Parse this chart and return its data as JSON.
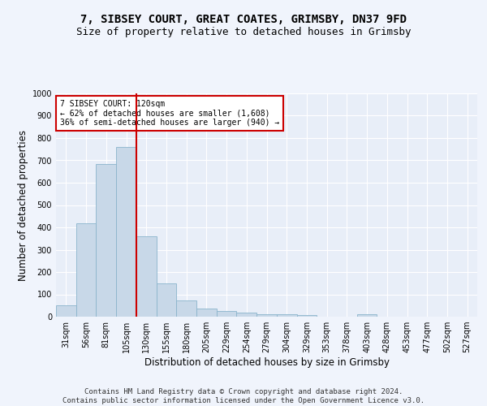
{
  "title_line1": "7, SIBSEY COURT, GREAT COATES, GRIMSBY, DN37 9FD",
  "title_line2": "Size of property relative to detached houses in Grimsby",
  "xlabel": "Distribution of detached houses by size in Grimsby",
  "ylabel": "Number of detached properties",
  "footer_line1": "Contains HM Land Registry data © Crown copyright and database right 2024.",
  "footer_line2": "Contains public sector information licensed under the Open Government Licence v3.0.",
  "categories": [
    "31sqm",
    "56sqm",
    "81sqm",
    "105sqm",
    "130sqm",
    "155sqm",
    "180sqm",
    "205sqm",
    "229sqm",
    "254sqm",
    "279sqm",
    "304sqm",
    "329sqm",
    "353sqm",
    "378sqm",
    "403sqm",
    "428sqm",
    "453sqm",
    "477sqm",
    "502sqm",
    "527sqm"
  ],
  "values": [
    50,
    420,
    685,
    760,
    360,
    150,
    72,
    38,
    25,
    17,
    12,
    10,
    8,
    0,
    0,
    10,
    0,
    0,
    0,
    0,
    0
  ],
  "bar_color": "#c8d8e8",
  "bar_edge_color": "#8ab4cc",
  "red_line_x": 3.5,
  "annotation_text": "7 SIBSEY COURT: 120sqm\n← 62% of detached houses are smaller (1,608)\n36% of semi-detached houses are larger (940) →",
  "ylim": [
    0,
    1000
  ],
  "yticks": [
    0,
    100,
    200,
    300,
    400,
    500,
    600,
    700,
    800,
    900,
    1000
  ],
  "background_color": "#e8eef8",
  "grid_color": "#ffffff",
  "fig_background": "#f0f4fc",
  "annotation_box_color": "#ffffff",
  "annotation_box_edge": "#cc0000",
  "red_line_color": "#cc0000",
  "title_fontsize": 10,
  "subtitle_fontsize": 9,
  "axis_label_fontsize": 8.5,
  "tick_fontsize": 7,
  "annotation_fontsize": 7,
  "footer_fontsize": 6.5
}
